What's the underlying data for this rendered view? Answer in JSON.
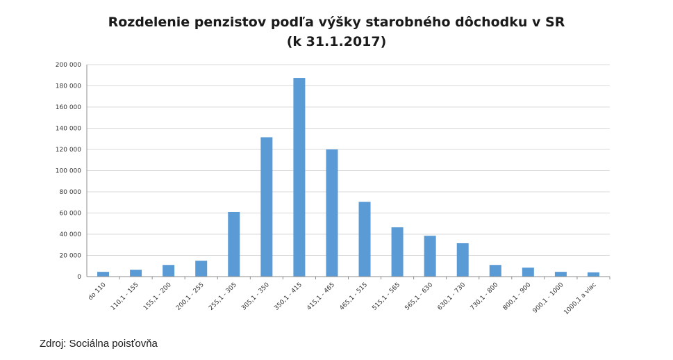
{
  "chart_data": {
    "type": "bar",
    "title": "Rozdelenie penzistov podľa výšky starobného dôchodku  v SR",
    "subtitle": "(k 31.1.2017)",
    "xlabel": "",
    "ylabel": "",
    "ylim": [
      0,
      200000
    ],
    "yticks": [
      "0",
      "20 000",
      "40 000",
      "60 000",
      "80 000",
      "100 000",
      "120 000",
      "140 000",
      "160 000",
      "180 000",
      "200 000"
    ],
    "categories": [
      "do 110",
      "110,1 - 155",
      "155,1 - 200",
      "200,1 - 255",
      "255,1 - 305",
      "305,1 - 350",
      "350,1 - 415",
      "415,1 - 465",
      "465,1 - 515",
      "515,1 - 565",
      "565,1 - 630",
      "630,1 - 730",
      "730,1 - 800",
      "800,1 - 900",
      "900,1 - 1000",
      "1000,1 a viac"
    ],
    "values": [
      4500,
      6500,
      11000,
      15000,
      61000,
      131500,
      187500,
      120000,
      70500,
      46500,
      38500,
      31500,
      11000,
      8500,
      4500,
      4000
    ],
    "grid": true,
    "color": "#5b9bd5"
  },
  "footer": {
    "source": "Zdroj:  Sociálna poisťovňa"
  }
}
